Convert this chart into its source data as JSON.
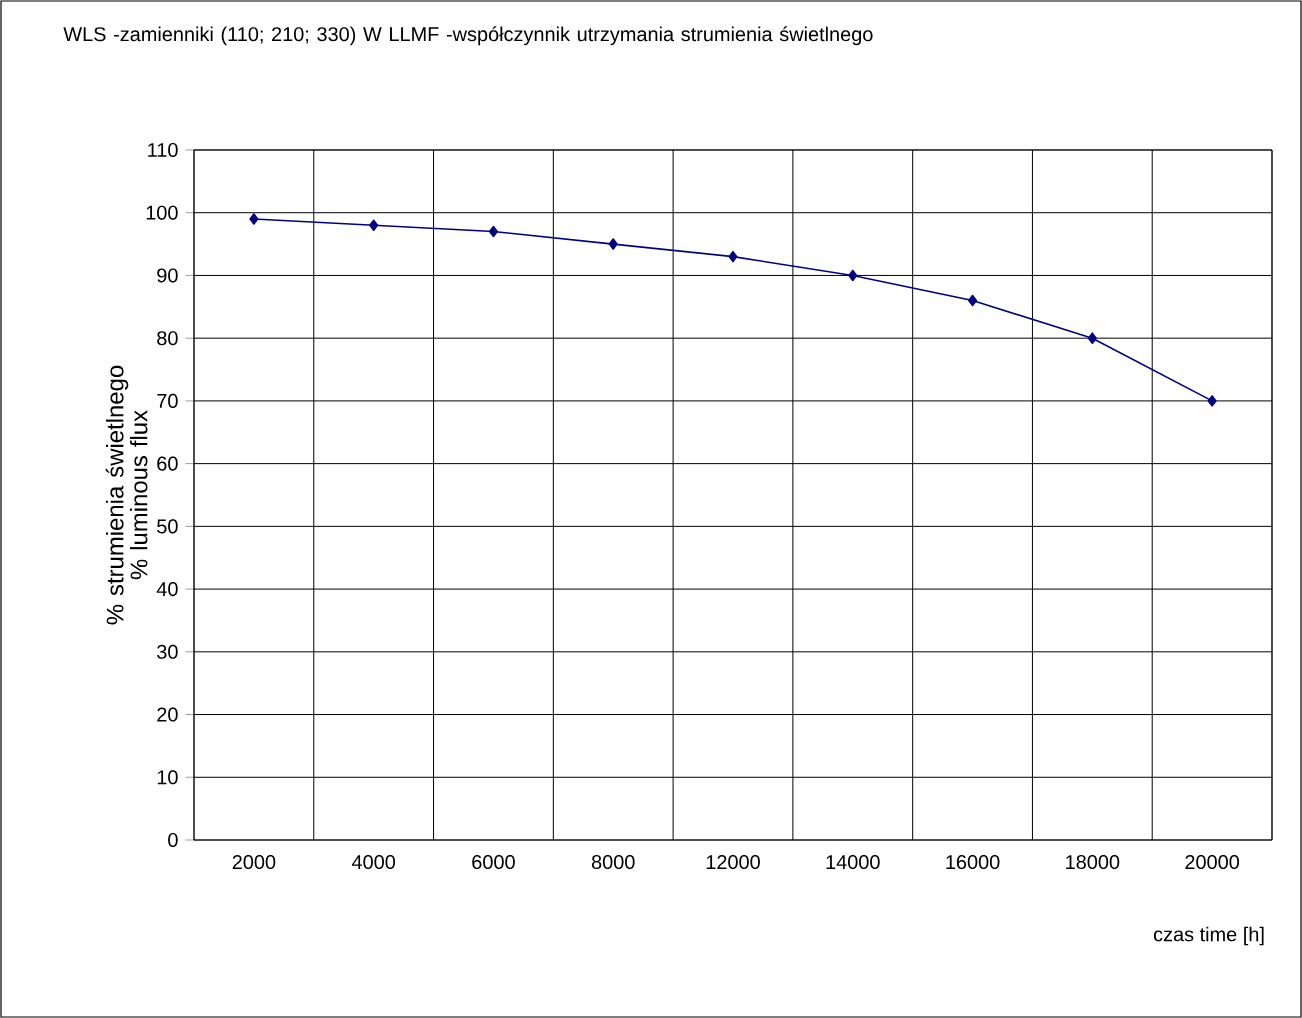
{
  "chart_data": {
    "type": "line",
    "title": "WLS -zamienniki (110; 210; 330) W   LLMF -współczynnik utrzymania strumienia świetlnego",
    "xlabel": "czas time [h]",
    "ylabel": "% strumienia świetlnego % luminous flux",
    "categories": [
      "2000",
      "4000",
      "6000",
      "8000",
      "12000",
      "14000",
      "16000",
      "18000",
      "20000"
    ],
    "series": [
      {
        "color": "#000080",
        "values": [
          99,
          98,
          97,
          95,
          93,
          90,
          86,
          80,
          70
        ]
      }
    ],
    "ylim": [
      0,
      110
    ],
    "yticks": [
      0,
      10,
      20,
      30,
      40,
      50,
      60,
      70,
      80,
      90,
      100,
      110
    ],
    "grid": true,
    "marker": "diamond",
    "line_style": "solid"
  }
}
